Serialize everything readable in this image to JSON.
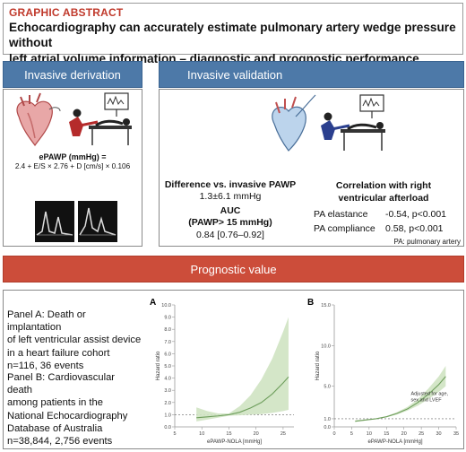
{
  "header": {
    "kicker": "GRAPHIC ABSTRACT",
    "title_line1": "Echocardiography can accurately estimate pulmonary artery wedge pressure without",
    "title_line2": "left atrial volume information – diagnostic and prognostic performance"
  },
  "derivation": {
    "tab_label": "Invasive derivation",
    "formula_title": "ePAWP (mmHg) =",
    "formula_body": "2.4 + E/S × 2.76 + D [cm/s] × 0.106"
  },
  "validation": {
    "tab_label": "Invasive validation",
    "diff_head": "Difference vs. invasive PAWP",
    "diff_val": "1.3±6.1 mmHg",
    "auc_head_line1": "AUC",
    "auc_head_line2": "(PAWP> 15 mmHg)",
    "auc_val": "0.84 [0.76–0.92]",
    "corr_head_line1": "Correlation with right",
    "corr_head_line2": "ventricular afterload",
    "corr_rows": [
      {
        "label": "PA elastance",
        "value": "-0.54, p<0.001"
      },
      {
        "label": "PA compliance",
        "value": "0.58, p<0.001"
      }
    ],
    "pa_note": "PA: pulmonary artery"
  },
  "prognostic": {
    "bar_label": "Prognostic value",
    "panel_a_text": [
      "Panel A: Death or implantation",
      "of left ventricular assist device",
      "in a heart failure cohort",
      "n=116, 36 events"
    ],
    "panel_b_text": [
      "Panel B: Cardiovascular death",
      "among patients in the",
      "National Echocardiography",
      "Database of Australia",
      "n=38,844, 2,756 events"
    ]
  },
  "colors": {
    "kicker_red": "#c0392b",
    "tab_blue": "#4d79a8",
    "bar_red": "#cc4d3a",
    "curve_green": "#6e9e5c",
    "band_green": "#cfe3c2"
  },
  "chart_data": [
    {
      "type": "line",
      "panel_label": "A",
      "xlabel": "ePAWP-NOLA [mmHg]",
      "ylabel": "Hazard ratio",
      "xlim": [
        5,
        27
      ],
      "ylim": [
        0,
        10
      ],
      "xticks": [
        5,
        10,
        15,
        20,
        25
      ],
      "yticks": [
        0.0,
        1.0,
        2.0,
        3.0,
        4.0,
        5.0,
        6.0,
        7.0,
        8.0,
        9.0,
        10.0
      ],
      "reference_line": 1.0,
      "x": [
        9,
        11,
        13,
        15,
        17,
        19,
        21,
        23,
        25,
        26
      ],
      "hr": [
        0.75,
        0.82,
        0.9,
        1.0,
        1.2,
        1.55,
        2.0,
        2.7,
        3.6,
        4.1
      ],
      "lower": [
        0.45,
        0.6,
        0.75,
        0.92,
        0.95,
        1.0,
        1.05,
        1.15,
        1.3,
        1.4
      ],
      "upper": [
        1.6,
        1.3,
        1.1,
        1.1,
        1.7,
        2.6,
        3.9,
        5.6,
        7.8,
        9.0
      ]
    },
    {
      "type": "line",
      "panel_label": "B",
      "xlabel": "ePAWP-NOLA [mmHg]",
      "ylabel": "Hazard ratio",
      "xlim": [
        0,
        35
      ],
      "ylim": [
        0,
        15
      ],
      "xticks": [
        0,
        5,
        10,
        15,
        20,
        25,
        30,
        35
      ],
      "yticks": [
        0.0,
        1.0,
        5.0,
        10.0,
        15.0
      ],
      "reference_line": 1.0,
      "annotation": [
        "Adjusted for age,",
        "sex and LVEF"
      ],
      "x": [
        6,
        9,
        12,
        15,
        18,
        21,
        24,
        27,
        30,
        32
      ],
      "hr": [
        0.7,
        0.85,
        1.0,
        1.25,
        1.65,
        2.2,
        3.0,
        4.0,
        5.2,
        6.2
      ],
      "lower": [
        0.6,
        0.78,
        0.95,
        1.18,
        1.52,
        2.0,
        2.6,
        3.4,
        4.3,
        5.0
      ],
      "upper": [
        0.8,
        0.92,
        1.05,
        1.32,
        1.8,
        2.45,
        3.4,
        4.7,
        6.2,
        7.5
      ]
    }
  ]
}
